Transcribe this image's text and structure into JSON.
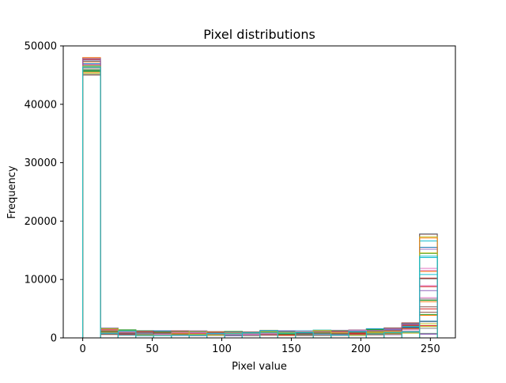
{
  "chart_data": {
    "type": "bar",
    "histtype": "step",
    "title": "Pixel distributions",
    "xlabel": "Pixel value",
    "ylabel": "Frequency",
    "xlim": [
      -14,
      268
    ],
    "ylim": [
      0,
      50000
    ],
    "xticks": [
      0,
      50,
      100,
      150,
      200,
      250
    ],
    "yticks": [
      0,
      10000,
      20000,
      30000,
      40000,
      50000
    ],
    "grid": false,
    "legend": "none",
    "bin_edges": [
      0,
      12.75,
      25.5,
      38.25,
      51,
      63.75,
      76.5,
      89.25,
      102,
      114.75,
      127.5,
      140.25,
      153,
      165.75,
      178.5,
      191.25,
      204,
      216.75,
      229.5,
      242.25,
      255
    ],
    "series_summary": {
      "count_approx": 40,
      "first_bin_range": [
        45000,
        48000
      ],
      "middle_bins_range": [
        100,
        1300
      ],
      "last_bin_range": [
        500,
        17800
      ]
    },
    "representative_bins": [
      48000,
      1200,
      1000,
      850,
      850,
      850,
      850,
      750,
      800,
      750,
      950,
      850,
      850,
      950,
      900,
      950,
      1100,
      1200,
      1800,
      17800
    ],
    "colors": [
      "#1f77b4",
      "#ff7f0e",
      "#2ca02c",
      "#d62728",
      "#9467bd",
      "#8c564b",
      "#e377c2",
      "#7f7f7f",
      "#bcbd22",
      "#17becf"
    ]
  }
}
